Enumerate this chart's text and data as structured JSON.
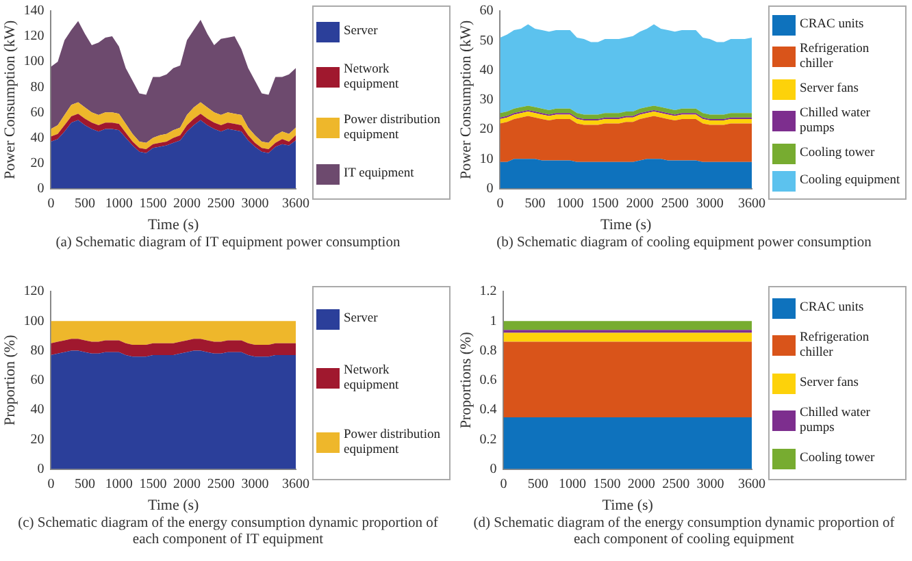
{
  "chart_data": [
    {
      "type": "area",
      "stacked": true,
      "xlabel": "Time (s)",
      "ylabel": "Power Consumption (kW)",
      "annotations": [
        "(a) Schematic diagram of IT equipment power consumption"
      ],
      "x": [
        0,
        100,
        200,
        300,
        400,
        500,
        600,
        700,
        800,
        900,
        1000,
        1100,
        1200,
        1300,
        1400,
        1500,
        1600,
        1700,
        1800,
        1900,
        2000,
        2100,
        2200,
        2300,
        2400,
        2500,
        2600,
        2700,
        2800,
        2900,
        3000,
        3100,
        3200,
        3300,
        3400,
        3500,
        3600
      ],
      "xlim": [
        0,
        3600
      ],
      "xticks": [
        0,
        500,
        1000,
        1500,
        2000,
        2500,
        3000,
        3600
      ],
      "ylim": [
        0,
        140
      ],
      "yticks": [
        0,
        20,
        40,
        60,
        80,
        100,
        120,
        140
      ],
      "legend": "right",
      "series": [
        {
          "name": "Server",
          "color": "#2b3f9a",
          "values": [
            37,
            39,
            45,
            52,
            54,
            50,
            47,
            45,
            47,
            47,
            46,
            40,
            34,
            29,
            28,
            32,
            33,
            34,
            36,
            38,
            45,
            50,
            54,
            50,
            47,
            45,
            47,
            46,
            45,
            38,
            33,
            29,
            28,
            33,
            35,
            34,
            38
          ]
        },
        {
          "name": "Network equipment",
          "color": "#a0182e",
          "values": [
            4,
            4,
            5,
            5,
            5,
            5,
            5,
            5,
            5,
            5,
            5,
            4,
            3,
            3,
            3,
            3,
            3,
            3,
            4,
            4,
            5,
            5,
            5,
            5,
            5,
            5,
            5,
            5,
            5,
            4,
            3,
            3,
            3,
            3,
            4,
            3,
            4
          ]
        },
        {
          "name": "Power distribution equipment",
          "color": "#eeb72b",
          "values": [
            6,
            7,
            8,
            9,
            9,
            9,
            8,
            8,
            8,
            8,
            8,
            7,
            6,
            5,
            5,
            5,
            6,
            6,
            6,
            6,
            8,
            9,
            9,
            9,
            8,
            8,
            8,
            8,
            8,
            6,
            6,
            5,
            5,
            6,
            6,
            6,
            6
          ]
        },
        {
          "name": "IT equipment",
          "color": "#6d4a6e",
          "values": [
            49,
            50,
            59,
            59,
            64,
            58,
            53,
            57,
            59,
            60,
            53,
            44,
            42,
            38,
            38,
            48,
            46,
            47,
            49,
            49,
            59,
            61,
            65,
            58,
            53,
            60,
            59,
            61,
            52,
            47,
            43,
            38,
            38,
            46,
            43,
            47,
            47
          ]
        }
      ]
    },
    {
      "type": "area",
      "stacked": true,
      "xlabel": "Time (s)",
      "ylabel": "Power Consumption (kW)",
      "annotations": [
        "(b) Schematic diagram of cooling equipment power consumption"
      ],
      "x": [
        0,
        100,
        200,
        300,
        400,
        500,
        600,
        700,
        800,
        900,
        1000,
        1100,
        1200,
        1300,
        1400,
        1500,
        1600,
        1700,
        1800,
        1900,
        2000,
        2100,
        2200,
        2300,
        2400,
        2500,
        2600,
        2700,
        2800,
        2900,
        3000,
        3100,
        3200,
        3300,
        3400,
        3500,
        3600
      ],
      "xlim": [
        0,
        3600
      ],
      "xticks": [
        0,
        500,
        1000,
        1500,
        2000,
        2500,
        3000,
        3600
      ],
      "ylim": [
        0,
        60
      ],
      "yticks": [
        0,
        10,
        20,
        30,
        40,
        50,
        60
      ],
      "legend": "right",
      "series": [
        {
          "name": "CRAC units",
          "color": "#0e72bd",
          "values": [
            9,
            9,
            10,
            10,
            10,
            10,
            9.5,
            9.5,
            9.5,
            9.5,
            9.5,
            9,
            9,
            9,
            9,
            9,
            9,
            9,
            9,
            9,
            9.5,
            10,
            10,
            10,
            9.5,
            9.5,
            9.5,
            9.5,
            9.5,
            9,
            9,
            9,
            9,
            9,
            9,
            9,
            9
          ]
        },
        {
          "name": "Refrigeration chiller",
          "color": "#d9541a",
          "values": [
            13,
            13.5,
            13.5,
            14,
            14.5,
            14,
            14,
            13.5,
            14,
            14,
            14,
            13,
            12.5,
            12.5,
            12.5,
            13,
            13,
            13,
            13.5,
            13.5,
            14,
            14,
            14.5,
            14,
            14,
            13.5,
            14,
            14,
            14,
            13,
            12.5,
            12.5,
            12.5,
            13,
            13,
            13,
            13
          ]
        },
        {
          "name": "Server fans",
          "color": "#fdd20a",
          "values": [
            1.5,
            1.5,
            1.5,
            1.5,
            1.5,
            1.5,
            1.5,
            1.5,
            1.5,
            1.5,
            1.5,
            1.5,
            1.5,
            1.5,
            1.5,
            1.5,
            1.5,
            1.5,
            1.5,
            1.5,
            1.5,
            1.5,
            1.5,
            1.5,
            1.5,
            1.5,
            1.5,
            1.5,
            1.5,
            1.5,
            1.5,
            1.5,
            1.5,
            1.5,
            1.5,
            1.5,
            1.5
          ]
        },
        {
          "name": "Chilled water pumps",
          "color": "#7d2e8e",
          "values": [
            0.5,
            0.5,
            0.5,
            0.5,
            0.5,
            0.5,
            0.5,
            0.5,
            0.5,
            0.5,
            0.5,
            0.5,
            0.5,
            0.5,
            0.5,
            0.5,
            0.5,
            0.5,
            0.5,
            0.5,
            0.5,
            0.5,
            0.5,
            0.5,
            0.5,
            0.5,
            0.5,
            0.5,
            0.5,
            0.5,
            0.5,
            0.5,
            0.5,
            0.5,
            0.5,
            0.5,
            0.5
          ]
        },
        {
          "name": "Cooling tower",
          "color": "#77ac30",
          "values": [
            1.5,
            1.5,
            1.5,
            1.5,
            1.5,
            1.5,
            1.5,
            1.5,
            1.5,
            1.5,
            1.5,
            1.5,
            1.5,
            1.5,
            1.5,
            1.5,
            1.5,
            1.5,
            1.5,
            1.5,
            1.5,
            1.5,
            1.5,
            1.5,
            1.5,
            1.5,
            1.5,
            1.5,
            1.5,
            1.5,
            1.5,
            1.5,
            1.5,
            1.5,
            1.5,
            1.5,
            1.5
          ]
        },
        {
          "name": "Cooling equipment",
          "color": "#5cc2ee",
          "values": [
            25.5,
            26,
            26.5,
            26.5,
            27.5,
            26.5,
            26.5,
            26.5,
            26.5,
            26.5,
            26.5,
            25.5,
            25.5,
            24.5,
            24.5,
            25,
            25,
            25,
            25,
            25.5,
            26,
            26.5,
            27.5,
            26.5,
            26.5,
            26.5,
            26.5,
            26.5,
            26.5,
            25.5,
            25.5,
            24.5,
            24.5,
            25,
            25,
            25,
            25.5
          ]
        }
      ]
    },
    {
      "type": "area",
      "stacked": true,
      "xlabel": "Time (s)",
      "ylabel": "Proportion (%)",
      "annotations": [
        "(c) Schematic diagram of the energy consumption dynamic proportion of each component of IT equipment"
      ],
      "x": [
        0,
        100,
        200,
        300,
        400,
        500,
        600,
        700,
        800,
        900,
        1000,
        1100,
        1200,
        1300,
        1400,
        1500,
        1600,
        1700,
        1800,
        1900,
        2000,
        2100,
        2200,
        2300,
        2400,
        2500,
        2600,
        2700,
        2800,
        2900,
        3000,
        3100,
        3200,
        3300,
        3400,
        3500,
        3600
      ],
      "xlim": [
        0,
        3600
      ],
      "xticks": [
        0,
        500,
        1000,
        1500,
        2000,
        2500,
        3000,
        3600
      ],
      "ylim": [
        0,
        120
      ],
      "yticks": [
        0,
        20,
        40,
        60,
        80,
        100,
        120
      ],
      "legend": "right",
      "series": [
        {
          "name": "Server",
          "color": "#2b3f9a",
          "values": [
            77,
            78,
            79,
            80,
            80,
            79,
            78,
            78,
            79,
            79,
            79,
            77,
            76,
            76,
            76,
            77,
            77,
            77,
            77,
            78,
            79,
            80,
            80,
            79,
            78,
            78,
            79,
            79,
            79,
            77,
            76,
            76,
            76,
            77,
            77,
            77,
            77
          ]
        },
        {
          "name": "Network equipment",
          "color": "#a0182e",
          "values": [
            8,
            8,
            8,
            8,
            8,
            8,
            8,
            8,
            8,
            8,
            8,
            8,
            8,
            8,
            8,
            8,
            8,
            8,
            8,
            8,
            8,
            8,
            8,
            8,
            8,
            8,
            8,
            8,
            8,
            8,
            8,
            8,
            8,
            8,
            8,
            8,
            8
          ]
        },
        {
          "name": "Power distribution equipment",
          "color": "#eeb72b",
          "values": [
            15,
            14,
            13,
            12,
            12,
            13,
            14,
            14,
            13,
            13,
            13,
            15,
            16,
            16,
            16,
            15,
            15,
            15,
            15,
            14,
            13,
            12,
            12,
            13,
            14,
            14,
            13,
            13,
            13,
            15,
            16,
            16,
            16,
            15,
            15,
            15,
            15
          ]
        }
      ]
    },
    {
      "type": "area",
      "stacked": true,
      "xlabel": "Time (s)",
      "ylabel": "Proportions (%)",
      "annotations": [
        "(d) Schematic diagram of the energy consumption dynamic proportion of each component of cooling equipment"
      ],
      "x": [
        0,
        100,
        200,
        300,
        400,
        500,
        600,
        700,
        800,
        900,
        1000,
        1100,
        1200,
        1300,
        1400,
        1500,
        1600,
        1700,
        1800,
        1900,
        2000,
        2100,
        2200,
        2300,
        2400,
        2500,
        2600,
        2700,
        2800,
        2900,
        3000,
        3100,
        3200,
        3300,
        3400,
        3500,
        3600
      ],
      "xlim": [
        0,
        3600
      ],
      "xticks": [
        0,
        500,
        1000,
        1500,
        2000,
        2500,
        3000,
        3600
      ],
      "ylim": [
        0,
        1.2
      ],
      "yticks": [
        0,
        0.2,
        0.4,
        0.6,
        0.8,
        1,
        1.2
      ],
      "legend": "right",
      "series": [
        {
          "name": "CRAC units",
          "color": "#0e72bd",
          "values": [
            0.35,
            0.35,
            0.35,
            0.35,
            0.35,
            0.35,
            0.35,
            0.35,
            0.35,
            0.35,
            0.35,
            0.35,
            0.35,
            0.35,
            0.35,
            0.35,
            0.35,
            0.35,
            0.35,
            0.35,
            0.35,
            0.35,
            0.35,
            0.35,
            0.35,
            0.35,
            0.35,
            0.35,
            0.35,
            0.35,
            0.35,
            0.35,
            0.35,
            0.35,
            0.35,
            0.35,
            0.35
          ]
        },
        {
          "name": "Refrigeration chiller",
          "color": "#d9541a",
          "values": [
            0.51,
            0.51,
            0.51,
            0.51,
            0.51,
            0.51,
            0.51,
            0.51,
            0.51,
            0.51,
            0.51,
            0.51,
            0.51,
            0.51,
            0.51,
            0.51,
            0.51,
            0.51,
            0.51,
            0.51,
            0.51,
            0.51,
            0.51,
            0.51,
            0.51,
            0.51,
            0.51,
            0.51,
            0.51,
            0.51,
            0.51,
            0.51,
            0.51,
            0.51,
            0.51,
            0.51,
            0.51
          ]
        },
        {
          "name": "Server fans",
          "color": "#fdd20a",
          "values": [
            0.06,
            0.06,
            0.06,
            0.06,
            0.06,
            0.06,
            0.06,
            0.06,
            0.06,
            0.06,
            0.06,
            0.06,
            0.06,
            0.06,
            0.06,
            0.06,
            0.06,
            0.06,
            0.06,
            0.06,
            0.06,
            0.06,
            0.06,
            0.06,
            0.06,
            0.06,
            0.06,
            0.06,
            0.06,
            0.06,
            0.06,
            0.06,
            0.06,
            0.06,
            0.06,
            0.06,
            0.06
          ]
        },
        {
          "name": "Chilled water pumps",
          "color": "#7d2e8e",
          "values": [
            0.02,
            0.02,
            0.02,
            0.02,
            0.02,
            0.02,
            0.02,
            0.02,
            0.02,
            0.02,
            0.02,
            0.02,
            0.02,
            0.02,
            0.02,
            0.02,
            0.02,
            0.02,
            0.02,
            0.02,
            0.02,
            0.02,
            0.02,
            0.02,
            0.02,
            0.02,
            0.02,
            0.02,
            0.02,
            0.02,
            0.02,
            0.02,
            0.02,
            0.02,
            0.02,
            0.02,
            0.02
          ]
        },
        {
          "name": "Cooling tower",
          "color": "#77ac30",
          "values": [
            0.06,
            0.06,
            0.06,
            0.06,
            0.06,
            0.06,
            0.06,
            0.06,
            0.06,
            0.06,
            0.06,
            0.06,
            0.06,
            0.06,
            0.06,
            0.06,
            0.06,
            0.06,
            0.06,
            0.06,
            0.06,
            0.06,
            0.06,
            0.06,
            0.06,
            0.06,
            0.06,
            0.06,
            0.06,
            0.06,
            0.06,
            0.06,
            0.06,
            0.06,
            0.06,
            0.06,
            0.06
          ]
        }
      ]
    }
  ]
}
